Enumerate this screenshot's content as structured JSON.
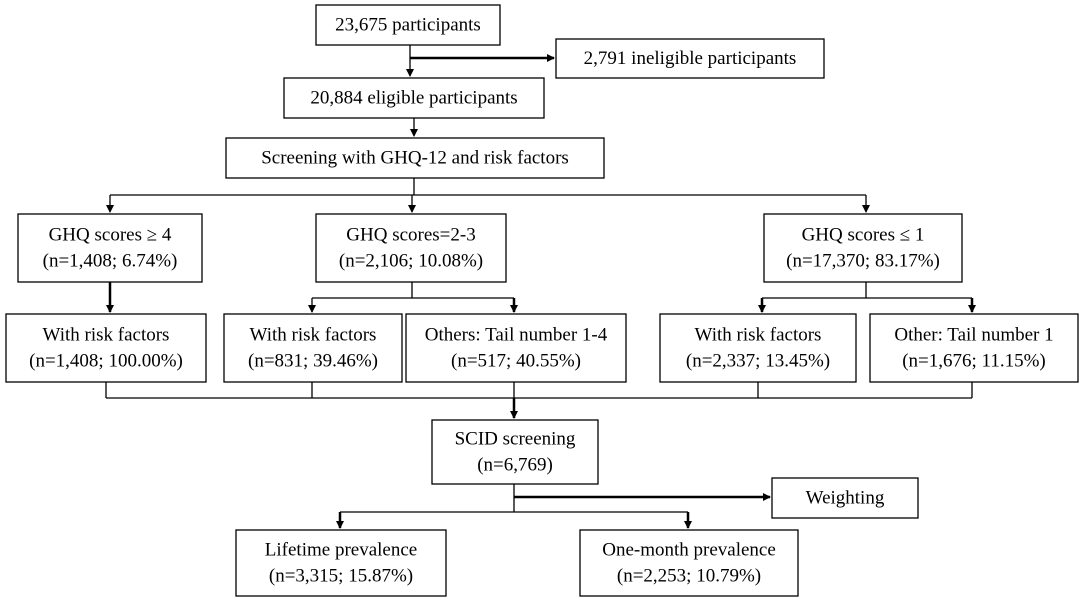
{
  "nodes": [
    {
      "lines": [
        "23,675 participants"
      ]
    },
    {
      "lines": [
        "2,791 ineligible participants"
      ]
    },
    {
      "lines": [
        "20,884 eligible participants"
      ]
    },
    {
      "lines": [
        "Screening with GHQ-12 and risk factors"
      ]
    },
    {
      "lines": [
        "GHQ scores ≥ 4",
        "(n=1,408; 6.74%)"
      ]
    },
    {
      "lines": [
        "GHQ scores=2-3",
        "(n=2,106; 10.08%)"
      ]
    },
    {
      "lines": [
        "GHQ scores ≤ 1",
        "(n=17,370; 83.17%)"
      ]
    },
    {
      "lines": [
        "With risk factors",
        "(n=1,408; 100.00%)"
      ]
    },
    {
      "lines": [
        "With risk factors",
        "(n=831; 39.46%)"
      ]
    },
    {
      "lines": [
        "Others: Tail number 1-4",
        "(n=517; 40.55%)"
      ]
    },
    {
      "lines": [
        "With risk factors",
        "(n=2,337; 13.45%)"
      ]
    },
    {
      "lines": [
        "Other: Tail number 1",
        "(n=1,676; 11.15%)"
      ]
    },
    {
      "lines": [
        "SCID screening",
        "(n=6,769)"
      ]
    },
    {
      "lines": [
        "Weighting"
      ]
    },
    {
      "lines": [
        "Lifetime prevalence",
        "(n=3,315; 15.87%)"
      ]
    },
    {
      "lines": [
        "One-month prevalence",
        "(n=2,253; 10.79%)"
      ]
    }
  ]
}
